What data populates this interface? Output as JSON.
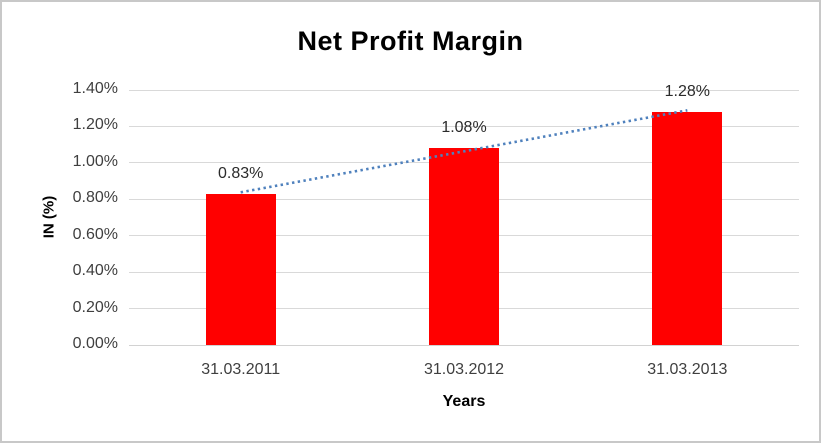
{
  "chart_data": {
    "type": "bar",
    "title": "Net Profit Margin",
    "xlabel": "Years",
    "ylabel": "IN (%)",
    "categories": [
      "31.03.2011",
      "31.03.2012",
      "31.03.2013"
    ],
    "values": [
      0.83,
      1.08,
      1.28
    ],
    "data_labels": [
      "0.83%",
      "1.08%",
      "1.28%"
    ],
    "y_ticks": [
      "0.00%",
      "0.20%",
      "0.40%",
      "0.60%",
      "0.80%",
      "1.00%",
      "1.20%",
      "1.40%"
    ],
    "ylim": [
      0,
      1.4
    ],
    "grid": "horizontal",
    "legend": "none",
    "trendline": {
      "type": "linear",
      "style": "dotted",
      "color": "#4f81bd"
    },
    "colors": {
      "bar": "#ff0000",
      "gridline": "#d9d9d9",
      "axis_line": "#d2d2d2",
      "frame_border": "#c8c8c8",
      "tick_text": "#3f3f3f",
      "title_text": "#000000"
    }
  }
}
